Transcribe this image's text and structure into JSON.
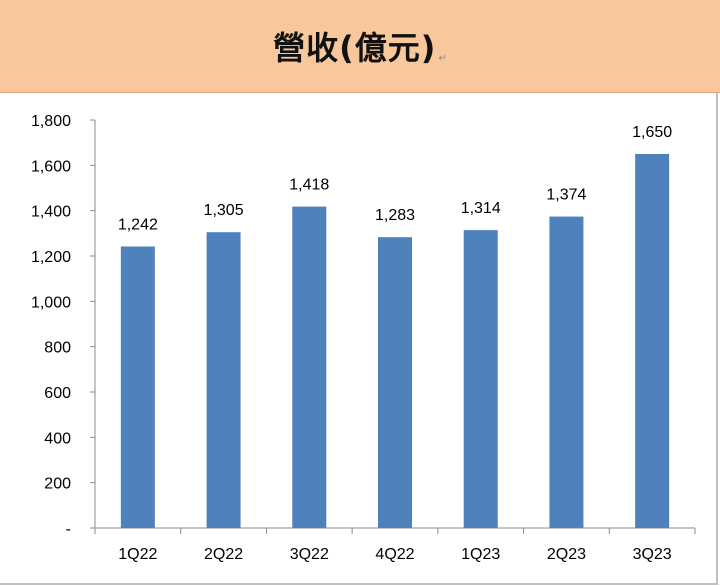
{
  "header": {
    "title": "營收(億元)",
    "band_color": "#f8c79b"
  },
  "chart_data": {
    "type": "bar",
    "title": "營收(億元)",
    "xlabel": "",
    "ylabel": "",
    "categories": [
      "1Q22",
      "2Q22",
      "3Q22",
      "4Q22",
      "1Q23",
      "2Q23",
      "3Q23"
    ],
    "values": [
      1242,
      1305,
      1418,
      1283,
      1314,
      1374,
      1650
    ],
    "data_labels": [
      "1,242",
      "1,305",
      "1,418",
      "1,283",
      "1,314",
      "1,374",
      "1,650"
    ],
    "ylim": [
      0,
      1800
    ],
    "yticks": [
      0,
      200,
      400,
      600,
      800,
      1000,
      1200,
      1400,
      1600,
      1800
    ],
    "ytick_labels": [
      "-",
      "200",
      "400",
      "600",
      "800",
      "1,000",
      "1,200",
      "1,400",
      "1,600",
      "1,800"
    ],
    "bar_color": "#4f81bd",
    "grid": false,
    "legend": "none"
  }
}
